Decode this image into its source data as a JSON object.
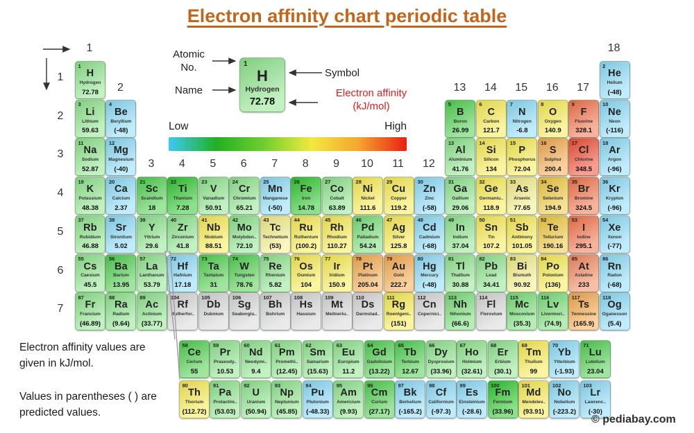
{
  "title": "Electron affinity chart periodic table",
  "annotation": {
    "atomic_no_label": "Atomic No.",
    "name_label": "Name",
    "symbol_label": "Symbol",
    "ea_label": "Electron affinity (kJ/mol)",
    "example": {
      "number": "1",
      "symbol": "H",
      "name": "Hydrogen",
      "value": "72.78",
      "color": "#8fe58f"
    }
  },
  "scale": {
    "low_label": "Low",
    "high_label": "High",
    "stops": [
      "#3fc9f2",
      "#23af23",
      "#6fcf2f",
      "#f2e93f",
      "#f5a42e",
      "#e92112"
    ]
  },
  "axes": {
    "groups": [
      {
        "t": "1",
        "col": 1,
        "band": 1
      },
      {
        "t": "18",
        "col": 18,
        "band": 1
      },
      {
        "t": "2",
        "col": 2,
        "band": 2
      },
      {
        "t": "13",
        "col": 13,
        "band": 2
      },
      {
        "t": "14",
        "col": 14,
        "band": 2
      },
      {
        "t": "15",
        "col": 15,
        "band": 2
      },
      {
        "t": "16",
        "col": 16,
        "band": 2
      },
      {
        "t": "17",
        "col": 17,
        "band": 2
      },
      {
        "t": "3",
        "col": 3,
        "band": 3
      },
      {
        "t": "4",
        "col": 4,
        "band": 3
      },
      {
        "t": "5",
        "col": 5,
        "band": 3
      },
      {
        "t": "6",
        "col": 6,
        "band": 3
      },
      {
        "t": "7",
        "col": 7,
        "band": 3
      },
      {
        "t": "8",
        "col": 8,
        "band": 3
      },
      {
        "t": "9",
        "col": 9,
        "band": 3
      },
      {
        "t": "10",
        "col": 10,
        "band": 3
      },
      {
        "t": "11",
        "col": 11,
        "band": 3
      },
      {
        "t": "12",
        "col": 12,
        "band": 3
      }
    ],
    "periods": [
      "1",
      "2",
      "3",
      "4",
      "5",
      "6",
      "7"
    ]
  },
  "colors": {
    "lg": "#8fe58f",
    "mg": "#50d050",
    "vg": "#2fc82f",
    "gn": "#79df79",
    "yl": "#f8ec55",
    "py": "#f4ee8a",
    "am": "#efc93f",
    "or": "#f5ab50",
    "ro": "#f3744d",
    "ro2": "#f28a61",
    "rd": "#f14f38",
    "bl": "#8edcf8",
    "gy": "#d8d8d8"
  },
  "notes": [
    "Electron affinity values are given in kJ/mol.",
    "Values in parentheses ( ) are predicted values."
  ],
  "watermark": "© pediabay.com",
  "chart_data": {
    "type": "heatmap",
    "unit": "kJ/mol",
    "elements": [
      {
        "n": 1,
        "s": "H",
        "name": "Hydrogen",
        "v": "72.78",
        "c": "lg",
        "r": 1,
        "g": 1
      },
      {
        "n": 2,
        "s": "He",
        "name": "Helium",
        "v": "(-48)",
        "c": "bl",
        "r": 1,
        "g": 18
      },
      {
        "n": 3,
        "s": "Li",
        "name": "Lithium",
        "v": "59.63",
        "c": "lg",
        "r": 2,
        "g": 1
      },
      {
        "n": 4,
        "s": "Be",
        "name": "Beryllium",
        "v": "(-48)",
        "c": "bl",
        "r": 2,
        "g": 2
      },
      {
        "n": 5,
        "s": "B",
        "name": "Boron",
        "v": "26.99",
        "c": "mg",
        "r": 2,
        "g": 13
      },
      {
        "n": 6,
        "s": "C",
        "name": "Carbon",
        "v": "121.7",
        "c": "yl",
        "r": 2,
        "g": 14
      },
      {
        "n": 7,
        "s": "N",
        "name": "Nitrogen",
        "v": "-6.8",
        "c": "bl",
        "r": 2,
        "g": 15
      },
      {
        "n": 8,
        "s": "O",
        "name": "Oxygen",
        "v": "140.9",
        "c": "yl",
        "r": 2,
        "g": 16
      },
      {
        "n": 9,
        "s": "F",
        "name": "Fluorine",
        "v": "328.1",
        "c": "ro",
        "r": 2,
        "g": 17
      },
      {
        "n": 10,
        "s": "Ne",
        "name": "Neon",
        "v": "(-116)",
        "c": "bl",
        "r": 2,
        "g": 18
      },
      {
        "n": 11,
        "s": "Na",
        "name": "Sodium",
        "v": "52.87",
        "c": "lg",
        "r": 3,
        "g": 1
      },
      {
        "n": 12,
        "s": "Mg",
        "name": "Magnesium",
        "v": "(-40)",
        "c": "bl",
        "r": 3,
        "g": 2
      },
      {
        "n": 13,
        "s": "Al",
        "name": "Aluminium",
        "v": "41.76",
        "c": "lg",
        "r": 3,
        "g": 13
      },
      {
        "n": 14,
        "s": "Si",
        "name": "Silicon",
        "v": "134",
        "c": "yl",
        "r": 3,
        "g": 14
      },
      {
        "n": 15,
        "s": "P",
        "name": "Phosphorus",
        "v": "72.04",
        "c": "yl",
        "r": 3,
        "g": 15
      },
      {
        "n": 16,
        "s": "S",
        "name": "Sulphur",
        "v": "200.4",
        "c": "or",
        "r": 3,
        "g": 16
      },
      {
        "n": 17,
        "s": "Cl",
        "name": "Chlorine",
        "v": "348.5",
        "c": "rd",
        "r": 3,
        "g": 17
      },
      {
        "n": 18,
        "s": "Ar",
        "name": "Argon",
        "v": "(-96)",
        "c": "bl",
        "r": 3,
        "g": 18
      },
      {
        "n": 19,
        "s": "K",
        "name": "Potassium",
        "v": "48.38",
        "c": "lg",
        "r": 4,
        "g": 1
      },
      {
        "n": 20,
        "s": "Ca",
        "name": "Calcium",
        "v": "2.37",
        "c": "bl",
        "r": 4,
        "g": 2
      },
      {
        "n": 21,
        "s": "Sc",
        "name": "Scandium",
        "v": "18",
        "c": "mg",
        "r": 4,
        "g": 3
      },
      {
        "n": 22,
        "s": "Ti",
        "name": "Titanium",
        "v": "7.28",
        "c": "vg",
        "r": 4,
        "g": 4
      },
      {
        "n": 23,
        "s": "V",
        "name": "Vanadium",
        "v": "50.91",
        "c": "lg",
        "r": 4,
        "g": 5
      },
      {
        "n": 24,
        "s": "Cr",
        "name": "Chromium",
        "v": "65.21",
        "c": "lg",
        "r": 4,
        "g": 6
      },
      {
        "n": 25,
        "s": "Mn",
        "name": "Manganese",
        "v": "(-50)",
        "c": "bl",
        "r": 4,
        "g": 7
      },
      {
        "n": 26,
        "s": "Fe",
        "name": "Iron",
        "v": "14.78",
        "c": "vg",
        "r": 4,
        "g": 8
      },
      {
        "n": 27,
        "s": "Co",
        "name": "Cobalt",
        "v": "63.89",
        "c": "lg",
        "r": 4,
        "g": 9
      },
      {
        "n": 28,
        "s": "Ni",
        "name": "Nickel",
        "v": "111.6",
        "c": "yl",
        "r": 4,
        "g": 10
      },
      {
        "n": 29,
        "s": "Cu",
        "name": "Copper",
        "v": "119.2",
        "c": "yl",
        "r": 4,
        "g": 11
      },
      {
        "n": 30,
        "s": "Zn",
        "name": "Zinc",
        "v": "(-58)",
        "c": "bl",
        "r": 4,
        "g": 12
      },
      {
        "n": 31,
        "s": "Ga",
        "name": "Gallium",
        "v": "29.06",
        "c": "lg",
        "r": 4,
        "g": 13
      },
      {
        "n": 32,
        "s": "Ge",
        "name": "Germaniu..",
        "v": "118.9",
        "c": "yl",
        "r": 4,
        "g": 14
      },
      {
        "n": 33,
        "s": "As",
        "name": "Arsenic",
        "v": "77.65",
        "c": "py",
        "r": 4,
        "g": 15
      },
      {
        "n": 34,
        "s": "Se",
        "name": "Selenium",
        "v": "194.9",
        "c": "am",
        "r": 4,
        "g": 16
      },
      {
        "n": 35,
        "s": "Br",
        "name": "Bromine",
        "v": "324.5",
        "c": "ro",
        "r": 4,
        "g": 17
      },
      {
        "n": 36,
        "s": "Kr",
        "name": "Krypton",
        "v": "(-96)",
        "c": "bl",
        "r": 4,
        "g": 18
      },
      {
        "n": 37,
        "s": "Rb",
        "name": "Rubidium",
        "v": "46.88",
        "c": "lg",
        "r": 5,
        "g": 1
      },
      {
        "n": 38,
        "s": "Sr",
        "name": "Strontium",
        "v": "5.02",
        "c": "bl",
        "r": 5,
        "g": 2
      },
      {
        "n": 39,
        "s": "Y",
        "name": "Yttrium",
        "v": "29.6",
        "c": "lg",
        "r": 5,
        "g": 3
      },
      {
        "n": 40,
        "s": "Zr",
        "name": "Zirconium",
        "v": "41.8",
        "c": "lg",
        "r": 5,
        "g": 4
      },
      {
        "n": 41,
        "s": "Nb",
        "name": "Niobium",
        "v": "88.51",
        "c": "yl",
        "r": 5,
        "g": 5
      },
      {
        "n": 42,
        "s": "Mo",
        "name": "Molybden..",
        "v": "72.10",
        "c": "lg",
        "r": 5,
        "g": 6
      },
      {
        "n": 43,
        "s": "Tc",
        "name": "Technetium",
        "v": "(53)",
        "c": "py",
        "r": 5,
        "g": 7
      },
      {
        "n": 44,
        "s": "Ru",
        "name": "Ruthenium",
        "v": "(100.2)",
        "c": "yl",
        "r": 5,
        "g": 8
      },
      {
        "n": 45,
        "s": "Rh",
        "name": "Rhodium",
        "v": "110.27",
        "c": "yl",
        "r": 5,
        "g": 9
      },
      {
        "n": 46,
        "s": "Pd",
        "name": "Palladium",
        "v": "54.24",
        "c": "gn",
        "r": 5,
        "g": 10
      },
      {
        "n": 47,
        "s": "Ag",
        "name": "Silver",
        "v": "125.8",
        "c": "yl",
        "r": 5,
        "g": 11
      },
      {
        "n": 48,
        "s": "Cd",
        "name": "Cadmium",
        "v": "(-68)",
        "c": "bl",
        "r": 5,
        "g": 12
      },
      {
        "n": 49,
        "s": "In",
        "name": "Indium",
        "v": "37.04",
        "c": "lg",
        "r": 5,
        "g": 13
      },
      {
        "n": 50,
        "s": "Sn",
        "name": "Tin",
        "v": "107.2",
        "c": "yl",
        "r": 5,
        "g": 14
      },
      {
        "n": 51,
        "s": "Sb",
        "name": "Antimony",
        "v": "101.05",
        "c": "yl",
        "r": 5,
        "g": 15
      },
      {
        "n": 52,
        "s": "Te",
        "name": "Tellurium",
        "v": "190.16",
        "c": "am",
        "r": 5,
        "g": 16
      },
      {
        "n": 53,
        "s": "I",
        "name": "Iodine",
        "v": "295.1",
        "c": "ro",
        "r": 5,
        "g": 17
      },
      {
        "n": 54,
        "s": "Xe",
        "name": "Xenon",
        "v": "(-77)",
        "c": "bl",
        "r": 5,
        "g": 18
      },
      {
        "n": 55,
        "s": "Cs",
        "name": "Caesium",
        "v": "45.5",
        "c": "lg",
        "r": 6,
        "g": 1
      },
      {
        "n": 56,
        "s": "Ba",
        "name": "Barium",
        "v": "13.95",
        "c": "mg",
        "r": 6,
        "g": 2
      },
      {
        "n": 57,
        "s": "La",
        "name": "Lanthanum",
        "v": "53.79",
        "c": "lg",
        "r": 6,
        "g": 3
      },
      {
        "n": 72,
        "s": "Hf",
        "name": "Hafnium",
        "v": "17.18",
        "c": "bl",
        "r": 6,
        "g": 4
      },
      {
        "n": 73,
        "s": "Ta",
        "name": "Tantalum",
        "v": "31",
        "c": "mg",
        "r": 6,
        "g": 5
      },
      {
        "n": 74,
        "s": "W",
        "name": "Tungsten",
        "v": "78.76",
        "c": "mg",
        "r": 6,
        "g": 6
      },
      {
        "n": 75,
        "s": "Re",
        "name": "Rhenium",
        "v": "5.82",
        "c": "lg",
        "r": 6,
        "g": 7
      },
      {
        "n": 76,
        "s": "Os",
        "name": "Osmium",
        "v": "104",
        "c": "yl",
        "r": 6,
        "g": 8
      },
      {
        "n": 77,
        "s": "Ir",
        "name": "Iridium",
        "v": "150.9",
        "c": "yl",
        "r": 6,
        "g": 9
      },
      {
        "n": 78,
        "s": "Pt",
        "name": "Platinum",
        "v": "205.04",
        "c": "or",
        "r": 6,
        "g": 10
      },
      {
        "n": 79,
        "s": "Au",
        "name": "Gold",
        "v": "222.7",
        "c": "or",
        "r": 6,
        "g": 11
      },
      {
        "n": 80,
        "s": "Hg",
        "name": "Mercury",
        "v": "(-48)",
        "c": "bl",
        "r": 6,
        "g": 12
      },
      {
        "n": 81,
        "s": "Tl",
        "name": "Thallium",
        "v": "30.88",
        "c": "lg",
        "r": 6,
        "g": 13
      },
      {
        "n": 82,
        "s": "Pb",
        "name": "Lead",
        "v": "34.41",
        "c": "lg",
        "r": 6,
        "g": 14
      },
      {
        "n": 83,
        "s": "Bi",
        "name": "Bismuth",
        "v": "90.92",
        "c": "py",
        "r": 6,
        "g": 15
      },
      {
        "n": 84,
        "s": "Po",
        "name": "Polonium",
        "v": "(136)",
        "c": "yl",
        "r": 6,
        "g": 16
      },
      {
        "n": 85,
        "s": "At",
        "name": "Astatine",
        "v": "233",
        "c": "ro2",
        "r": 6,
        "g": 17
      },
      {
        "n": 86,
        "s": "Rn",
        "name": "Radon",
        "v": "(-68)",
        "c": "bl",
        "r": 6,
        "g": 18
      },
      {
        "n": 87,
        "s": "Fr",
        "name": "Francium",
        "v": "(46.89)",
        "c": "lg",
        "r": 7,
        "g": 1
      },
      {
        "n": 88,
        "s": "Ra",
        "name": "Radium",
        "v": "(9.64)",
        "c": "lg",
        "r": 7,
        "g": 2
      },
      {
        "n": 89,
        "s": "Ac",
        "name": "Actinium",
        "v": "(33.77)",
        "c": "lg",
        "r": 7,
        "g": 3
      },
      {
        "n": 104,
        "s": "Rf",
        "name": "Rutherfor..",
        "v": "",
        "c": "gy",
        "r": 7,
        "g": 4
      },
      {
        "n": 105,
        "s": "Db",
        "name": "Dubnium",
        "v": "",
        "c": "gy",
        "r": 7,
        "g": 5
      },
      {
        "n": 106,
        "s": "Sg",
        "name": "Seaborgiu..",
        "v": "",
        "c": "gy",
        "r": 7,
        "g": 6
      },
      {
        "n": 107,
        "s": "Bh",
        "name": "Bohrium",
        "v": "",
        "c": "gy",
        "r": 7,
        "g": 7
      },
      {
        "n": 108,
        "s": "Hs",
        "name": "Hassium",
        "v": "",
        "c": "gy",
        "r": 7,
        "g": 8
      },
      {
        "n": 109,
        "s": "Mt",
        "name": "Meitneriu..",
        "v": "",
        "c": "gy",
        "r": 7,
        "g": 9
      },
      {
        "n": 110,
        "s": "Ds",
        "name": "Darmstad..",
        "v": "",
        "c": "gy",
        "r": 7,
        "g": 10
      },
      {
        "n": 111,
        "s": "Rg",
        "name": "Roentgeni..",
        "v": "(151)",
        "c": "yl",
        "r": 7,
        "g": 11
      },
      {
        "n": 112,
        "s": "Cn",
        "name": "Copernici..",
        "v": "",
        "c": "gy",
        "r": 7,
        "g": 12
      },
      {
        "n": 113,
        "s": "Nh",
        "name": "Nihonium",
        "v": "(66.6)",
        "c": "gn",
        "r": 7,
        "g": 13
      },
      {
        "n": 114,
        "s": "Fl",
        "name": "Flerovium",
        "v": "",
        "c": "gy",
        "r": 7,
        "g": 14
      },
      {
        "n": 115,
        "s": "Mc",
        "name": "Moscovium",
        "v": "(35.3)",
        "c": "gn",
        "r": 7,
        "g": 15
      },
      {
        "n": 116,
        "s": "Lv",
        "name": "Livermori..",
        "v": "(74.9)",
        "c": "gn",
        "r": 7,
        "g": 16
      },
      {
        "n": 117,
        "s": "Ts",
        "name": "Tennessine",
        "v": "(165.9)",
        "c": "or",
        "r": 7,
        "g": 17
      },
      {
        "n": 118,
        "s": "Og",
        "name": "Oganesson",
        "v": "(5.4)",
        "c": "bl",
        "r": 7,
        "g": 18
      }
    ],
    "lanthanides": [
      {
        "n": 58,
        "s": "Ce",
        "name": "Cerium",
        "v": "55",
        "c": "mg"
      },
      {
        "n": 59,
        "s": "Pr",
        "name": "Praseody..",
        "v": "10.53",
        "c": "lg"
      },
      {
        "n": 60,
        "s": "Nd",
        "name": "Neodymi..",
        "v": "9.4",
        "c": "lg"
      },
      {
        "n": 61,
        "s": "Pm",
        "name": "Promethi..",
        "v": "(12.45)",
        "c": "lg"
      },
      {
        "n": 62,
        "s": "Sm",
        "name": "Samarium",
        "v": "(15.63)",
        "c": "lg"
      },
      {
        "n": 63,
        "s": "Eu",
        "name": "Europium",
        "v": "11.2",
        "c": "lg"
      },
      {
        "n": 64,
        "s": "Gd",
        "name": "Gadolinium",
        "v": "(13.22)",
        "c": "mg"
      },
      {
        "n": 65,
        "s": "Tb",
        "name": "Terbium",
        "v": "12.67",
        "c": "mg"
      },
      {
        "n": 66,
        "s": "Dy",
        "name": "Dysprosium",
        "v": "(33.96)",
        "c": "lg"
      },
      {
        "n": 67,
        "s": "Ho",
        "name": "Holmium",
        "v": "(32.61)",
        "c": "lg"
      },
      {
        "n": 68,
        "s": "Er",
        "name": "Erbium",
        "v": "(30.1)",
        "c": "lg"
      },
      {
        "n": 69,
        "s": "Tm",
        "name": "Thulium",
        "v": "99",
        "c": "yl"
      },
      {
        "n": 70,
        "s": "Yb",
        "name": "Ytterbium",
        "v": "(-1.93)",
        "c": "bl"
      },
      {
        "n": 71,
        "s": "Lu",
        "name": "Lutetium",
        "v": "23.04",
        "c": "mg"
      }
    ],
    "actinides": [
      {
        "n": 90,
        "s": "Th",
        "name": "Thorium",
        "v": "(112.72)",
        "c": "yl"
      },
      {
        "n": 91,
        "s": "Pa",
        "name": "Protactini..",
        "v": "(53.03)",
        "c": "lg"
      },
      {
        "n": 92,
        "s": "U",
        "name": "Uranium",
        "v": "(50.94)",
        "c": "lg"
      },
      {
        "n": 93,
        "s": "Np",
        "name": "Neptunium",
        "v": "(45.85)",
        "c": "lg"
      },
      {
        "n": 94,
        "s": "Pu",
        "name": "Plutonium",
        "v": "(-48.33)",
        "c": "bl"
      },
      {
        "n": 95,
        "s": "Am",
        "name": "Americium",
        "v": "(9.93)",
        "c": "lg"
      },
      {
        "n": 96,
        "s": "Cm",
        "name": "Curium",
        "v": "(27.17)",
        "c": "mg"
      },
      {
        "n": 97,
        "s": "Bk",
        "name": "Berkelium",
        "v": "(-165.2)",
        "c": "bl"
      },
      {
        "n": 98,
        "s": "Cf",
        "name": "Californium",
        "v": "(-97.3)",
        "c": "bl"
      },
      {
        "n": 99,
        "s": "Es",
        "name": "Einsteinium",
        "v": "(-28.6)",
        "c": "bl"
      },
      {
        "n": 100,
        "s": "Fm",
        "name": "Fermium",
        "v": "(33.96)",
        "c": "vg"
      },
      {
        "n": 101,
        "s": "Md",
        "name": "Mendelev..",
        "v": "(93.91)",
        "c": "yl"
      },
      {
        "n": 102,
        "s": "No",
        "name": "Nobelium",
        "v": "(-223.2)",
        "c": "bl"
      },
      {
        "n": 103,
        "s": "Lr",
        "name": "Lawrenc..",
        "v": "(-30)",
        "c": "bl"
      }
    ]
  }
}
